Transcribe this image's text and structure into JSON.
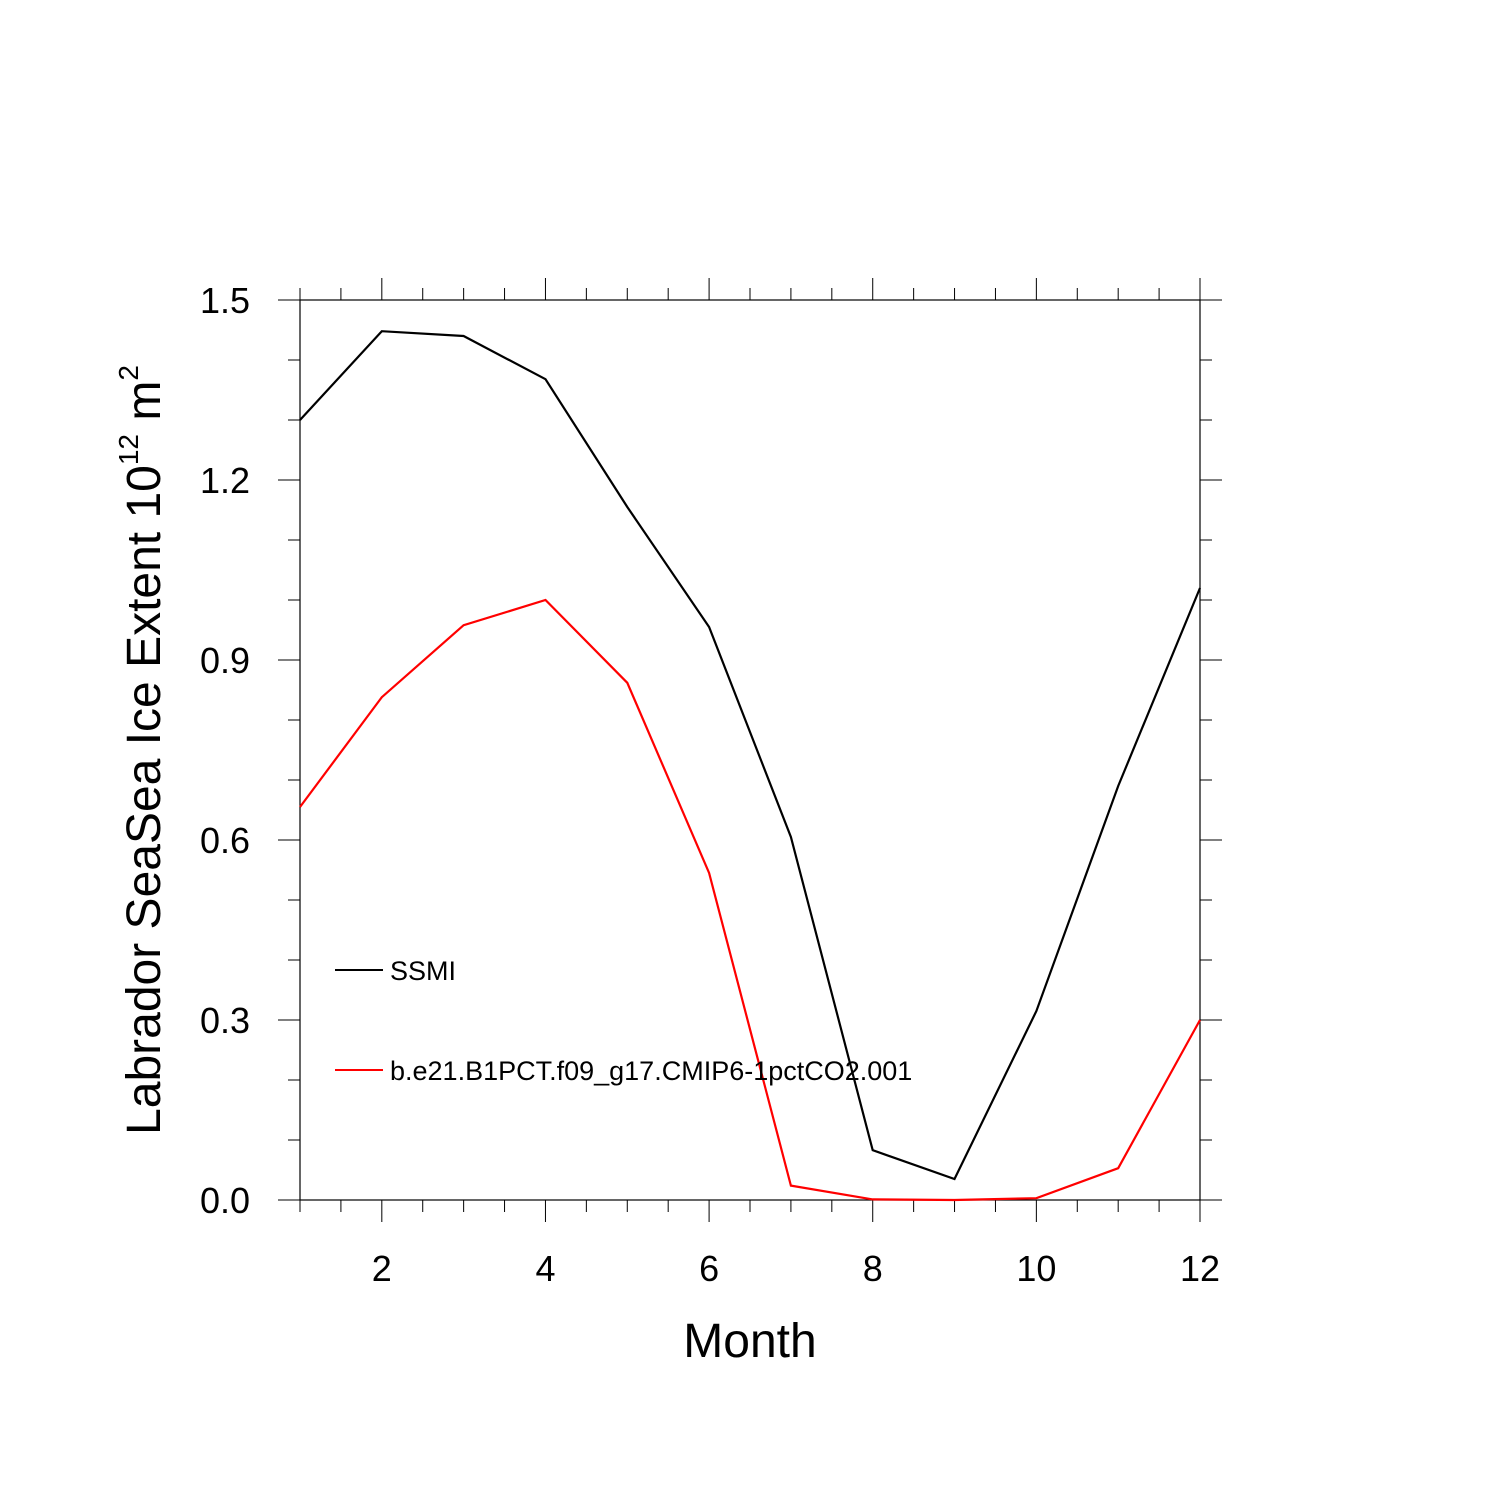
{
  "chart_data": {
    "type": "line",
    "title": "",
    "xlabel": "Month",
    "ylabel": {
      "main": "Labrador SeaSea Ice Extent 10",
      "exponent": "12",
      "unit": " m",
      "unit_exponent": "2"
    },
    "xlim": [
      1,
      12
    ],
    "ylim": [
      0,
      1.5
    ],
    "x_ticks": [
      2,
      4,
      6,
      8,
      10,
      12
    ],
    "x_tick_labels": [
      "2",
      "4",
      "6",
      "8",
      "10",
      "12"
    ],
    "y_ticks": [
      0,
      0.3,
      0.6,
      0.9,
      1.2,
      1.5
    ],
    "y_tick_labels": [
      "0.0",
      "0.3",
      "0.6",
      "0.9",
      "1.2",
      "1.5"
    ],
    "grid": false,
    "legend_position": "lower-left inside",
    "x": [
      1,
      2,
      3,
      4,
      5,
      6,
      7,
      8,
      9,
      10,
      11,
      12
    ],
    "series": [
      {
        "name": "SSMI",
        "color": "#000000",
        "values": [
          1.3,
          1.448,
          1.44,
          1.368,
          1.155,
          0.955,
          0.605,
          0.083,
          0.035,
          0.315,
          0.69,
          1.02
        ]
      },
      {
        "name": "b.e21.B1PCT.f09_g17.CMIP6-1pctCO2.001",
        "color": "#ff0000",
        "values": [
          0.655,
          0.838,
          0.958,
          1.0,
          0.862,
          0.545,
          0.024,
          0.001,
          0.0,
          0.003,
          0.053,
          0.3
        ]
      }
    ]
  }
}
